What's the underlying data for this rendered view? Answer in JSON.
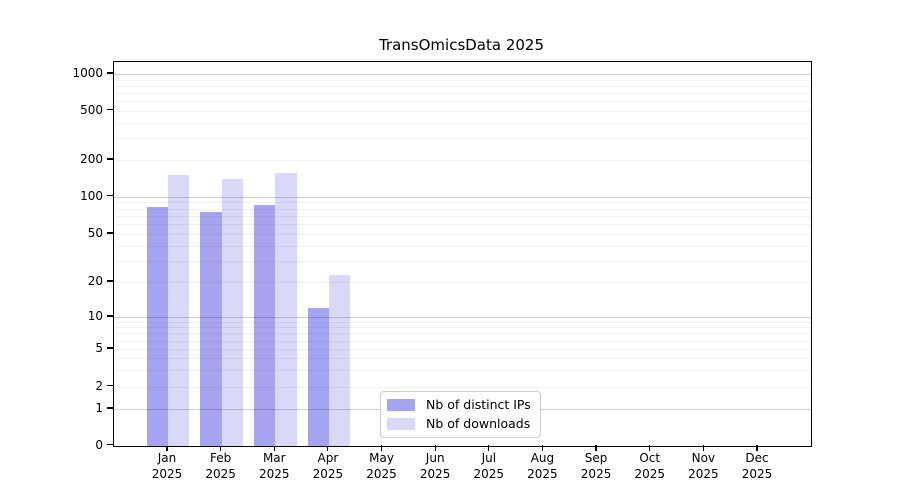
{
  "title": "TransOmicsData 2025",
  "chart_data": {
    "type": "bar",
    "categories": [
      "Jan 2025",
      "Feb 2025",
      "Mar 2025",
      "Apr 2025",
      "May 2025",
      "Jun 2025",
      "Jul 2025",
      "Aug 2025",
      "Sep 2025",
      "Oct 2025",
      "Nov 2025",
      "Dec 2025"
    ],
    "series": [
      {
        "name": "Nb of distinct IPs",
        "color": "#a4a4f1",
        "values": [
          82,
          75,
          85,
          12,
          null,
          null,
          null,
          null,
          null,
          null,
          null,
          null
        ]
      },
      {
        "name": "Nb of downloads",
        "color": "#d8d8f8",
        "values": [
          150,
          140,
          155,
          23,
          null,
          null,
          null,
          null,
          null,
          null,
          null,
          null
        ]
      }
    ],
    "xlabel": "",
    "ylabel": "",
    "yscale": "symlog",
    "ylim": [
      0,
      1300
    ],
    "yticks": [
      0,
      1,
      2,
      5,
      10,
      20,
      50,
      100,
      200,
      500,
      1000
    ],
    "grid": true,
    "legend_position": "lower-center-inside"
  }
}
